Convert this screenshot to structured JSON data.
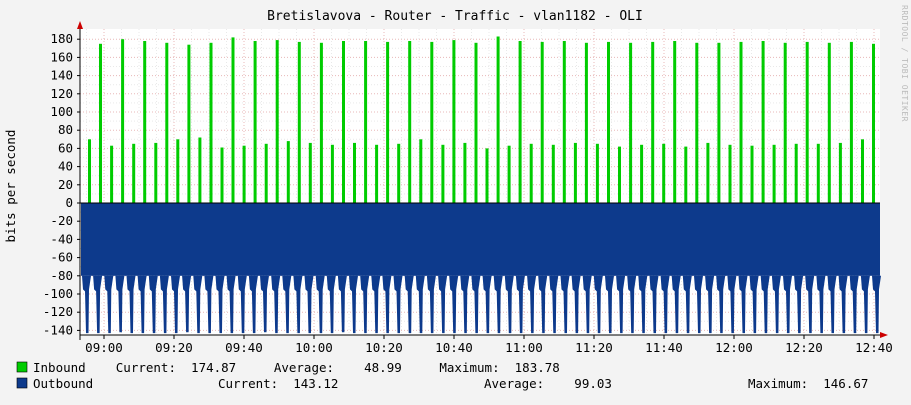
{
  "chart_data": {
    "type": "area",
    "title": "Bretislavova - Router - Traffic - vlan1182 - OLI",
    "ylabel": "bits per second",
    "side_label": "RRDTOOL / TOBI OETIKER",
    "ylim": [
      -145,
      185
    ],
    "y_ticks": [
      "180",
      "160",
      "140",
      "120",
      "100",
      "80",
      "60",
      "40",
      "20",
      "0",
      "-20",
      "-40",
      "-60",
      "-80",
      "-100",
      "-120",
      "-140"
    ],
    "x_ticks": [
      "09:00",
      "09:20",
      "09:40",
      "10:00",
      "10:20",
      "10:40",
      "11:00",
      "11:20",
      "11:40",
      "12:00",
      "12:20",
      "12:40"
    ],
    "grid": true,
    "inbound_peaks": [
      70,
      175,
      63,
      180,
      65,
      178,
      66,
      176,
      70,
      174,
      72,
      176,
      61,
      182,
      63,
      178,
      65,
      179,
      68,
      177,
      66,
      176,
      64,
      178,
      66,
      178,
      64,
      177,
      65,
      178,
      70,
      177,
      64,
      179,
      66,
      176,
      60,
      183,
      63,
      178,
      65,
      177,
      64,
      178,
      66,
      176,
      65,
      177,
      62,
      176,
      64,
      177,
      65,
      178,
      62,
      176,
      66,
      176,
      64,
      177,
      63,
      178,
      64,
      176,
      65,
      177,
      65,
      176,
      66,
      177,
      70,
      175
    ],
    "outbound_peaks": [
      143,
      143,
      143,
      142,
      143,
      143,
      143,
      143,
      143,
      142,
      143,
      143,
      143,
      143,
      143,
      143,
      142,
      143,
      143,
      143,
      143,
      143,
      143,
      142,
      143,
      143,
      143,
      143,
      143,
      143,
      143,
      143,
      143,
      143,
      143,
      143,
      143,
      143,
      143,
      143,
      143,
      143,
      143,
      143,
      143,
      143,
      143,
      143,
      143,
      143,
      143,
      143,
      143,
      143,
      143,
      143,
      143,
      143,
      143,
      143,
      143,
      143,
      143,
      143,
      143,
      143,
      143,
      143,
      143,
      143,
      143,
      143
    ],
    "series": [
      {
        "name": "Inbound",
        "color": "#00cc00",
        "current": "174.87",
        "average": "48.99",
        "maximum": "183.78"
      },
      {
        "name": "Outbound",
        "color": "#0d3a8c",
        "current": "143.12",
        "average": "99.03",
        "maximum": "146.67"
      }
    ]
  },
  "legend": {
    "inbound_line": "Inbound    Current:  174.87     Average:    48.99     Maximum:  183.78",
    "outbound_name": "Outbound",
    "outbound_current": "Current:  143.12",
    "outbound_average": "Average:    99.03",
    "outbound_maximum": "Maximum:  146.67"
  }
}
